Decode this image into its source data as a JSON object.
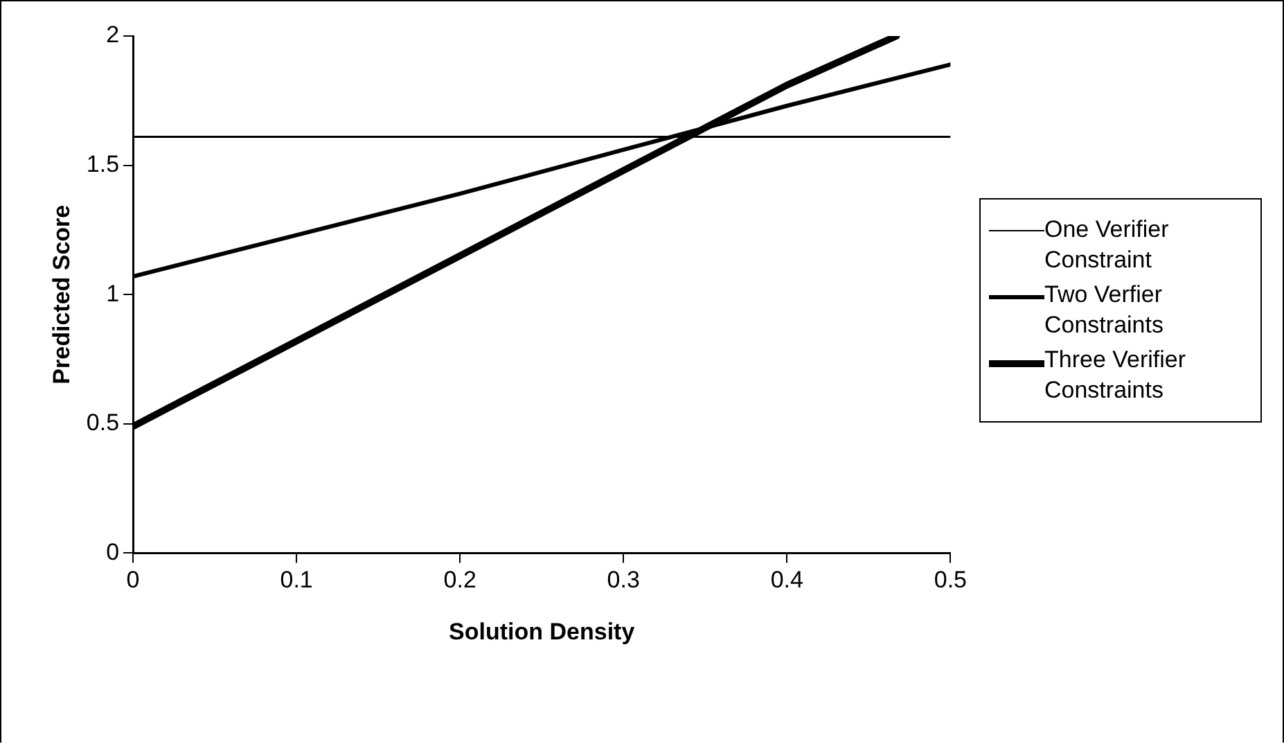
{
  "chart_data": {
    "type": "line",
    "xlabel": "Solution Density",
    "ylabel": "Predicted Score",
    "xlim": [
      0,
      0.5
    ],
    "xticks": [
      0,
      0.1,
      0.2,
      0.3,
      0.4,
      0.5
    ],
    "ylim": [
      0,
      2
    ],
    "yticks": [
      0,
      0.5,
      1,
      1.5,
      2
    ],
    "grid": false,
    "legend": "right",
    "marker": "none",
    "line_style": "solid",
    "series": [
      {
        "name": "One Verifier Constraint",
        "color": "#000000",
        "x": [
          0,
          0.5
        ],
        "values": [
          1.61,
          1.61
        ]
      },
      {
        "name": "Two Verfier Constraints",
        "color": "#000000",
        "x": [
          0,
          0.1,
          0.2,
          0.3,
          0.4,
          0.5
        ],
        "values": [
          1.07,
          1.23,
          1.39,
          1.56,
          1.73,
          1.89
        ]
      },
      {
        "name": "Three Verifier Constraints",
        "color": "#000000",
        "x": [
          0,
          0.1,
          0.2,
          0.3,
          0.4,
          0.467
        ],
        "values": [
          0.49,
          0.82,
          1.15,
          1.48,
          1.81,
          2.0
        ]
      }
    ]
  }
}
